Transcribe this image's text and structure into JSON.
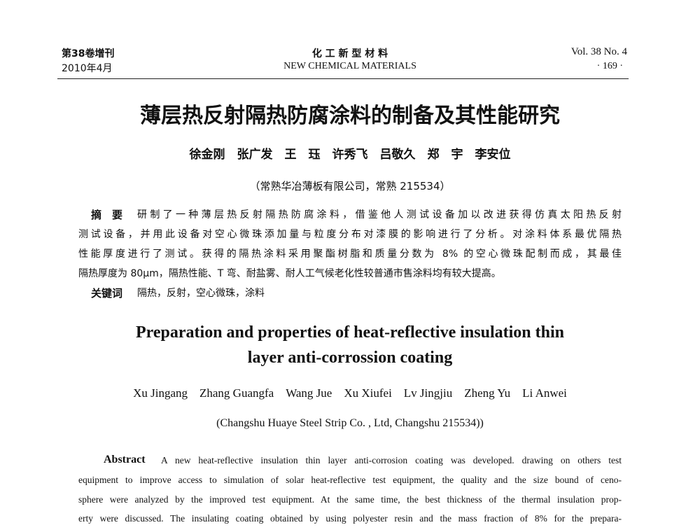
{
  "header": {
    "volume_cn": "第38卷增刊",
    "date_cn": "2010年4月",
    "journal_cn": "化 工 新 型 材 料",
    "journal_en": "NEW CHEMICAL MATERIALS",
    "volume_en": "Vol. 38 No. 4",
    "page": "· 169 ·"
  },
  "title_cn": "薄层热反射隔热防腐涂料的制备及其性能研究",
  "authors_cn": "徐金刚　张广发　王　珏　许秀飞　吕敬久　郑　宇　李安位",
  "affiliation_cn": "（常熟华冶薄板有限公司，常熟 215534）",
  "abstract_cn": {
    "label": "摘　要",
    "lines": [
      "研制了一种薄层热反射隔热防腐涂料，借鉴他人测试设备加以改进获得仿真太阳热反射",
      "测试设备，并用此设备对空心微珠添加量与粒度分布对漆膜的影响进行了分析。对涂料体系最优隔热",
      "性能厚度进行了测试。获得的隔热涂料采用聚酯树脂和质量分数为 8% 的空心微珠配制而成，其最佳",
      "隔热厚度为 80μm，隔热性能、T 弯、耐盐雾、耐人工气候老化性较普通市售涂料均有较大提高。"
    ]
  },
  "keywords_cn": {
    "label": "关键词",
    "text": "隔热，反射，空心微珠，涂料"
  },
  "title_en": [
    "Preparation and properties of heat-reflective insulation thin",
    "layer anti-corrossion coating"
  ],
  "authors_en": "Xu Jingang　Zhang Guangfa　Wang Jue　Xu Xiufei　Lv Jingjiu　Zheng Yu　Li Anwei",
  "affiliation_en": "(Changshu Huaye Steel Strip Co. , Ltd, Changshu 215534))",
  "abstract_en": {
    "label": "Abstract",
    "lines": [
      "A new heat-reflective insulation thin layer anti-corrosion coating was developed. drawing on others test",
      "equipment to improve access to simulation of solar heat-reflective test equipment, the quality and the size bound of ceno-",
      "sphere were analyzed by the improved test equipment. At the same time, the best thickness of the thermal insulation prop-",
      "erty were discussed. The insulating coating obtained by using polyester resin and the mass fraction of 8% for the prepara-"
    ]
  }
}
